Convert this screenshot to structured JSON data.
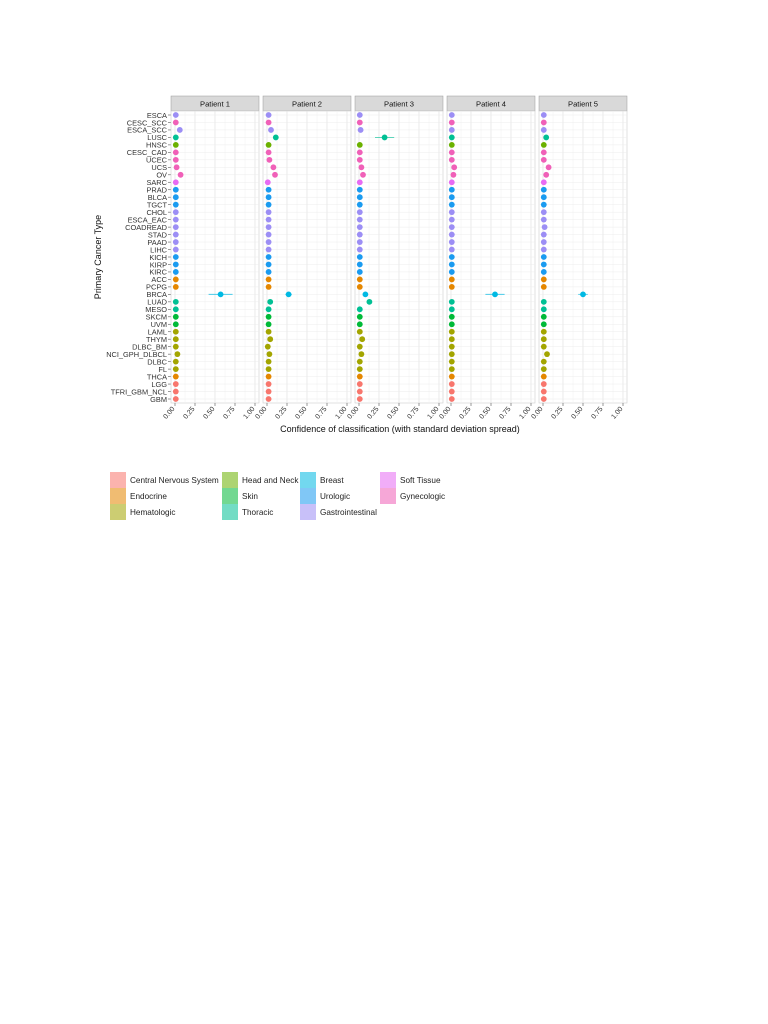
{
  "colors": {
    "Central Nervous System": "#f8766d",
    "Endocrine": "#e58700",
    "Hematologic": "#a3a500",
    "Head and Neck": "#6bb100",
    "Skin": "#00ba38",
    "Thoracic": "#00c094",
    "Breast": "#00b9e3",
    "Urologic": "#1a9bf0",
    "Gastrointestinal": "#9c8ef5",
    "Soft Tissue": "#e76bf3",
    "Gynecologic": "#f060b8"
  },
  "chart_data": {
    "type": "scatter",
    "ylabel": "Primary Cancer Type",
    "xlabel": "Confidence of classification (with standard deviation spread)",
    "xlim": [
      0,
      1
    ],
    "x_ticks": [
      "0.00",
      "0.25",
      "0.50",
      "0.75",
      "1.00"
    ],
    "grid": true,
    "legend_position": "bottom",
    "facets": [
      "Patient 1",
      "Patient 2",
      "Patient 3",
      "Patient 4",
      "Patient 5"
    ],
    "categories": [
      "ESCA",
      "CESC_SCC",
      "ESCA_SCC",
      "LUSC",
      "HNSC",
      "CESC_CAD",
      "UCEC",
      "UCS",
      "OV",
      "SARC",
      "PRAD",
      "BLCA",
      "TGCT",
      "CHOL",
      "ESCA_EAC",
      "COADREAD",
      "STAD",
      "PAAD",
      "LIHC",
      "KICH",
      "KIRP",
      "KIRC",
      "ACC",
      "PCPG",
      "BRCA",
      "LUAD",
      "MESO",
      "SKCM",
      "UVM",
      "LAML",
      "THYM",
      "DLBC_BM",
      "NCI_GPH_DLBCL",
      "DLBC",
      "FL",
      "THCA",
      "LGG",
      "TFRI_GBM_NCL",
      "GBM"
    ],
    "groups": [
      "Gastrointestinal",
      "Gynecologic",
      "Gastrointestinal",
      "Thoracic",
      "Head and Neck",
      "Gynecologic",
      "Gynecologic",
      "Gynecologic",
      "Gynecologic",
      "Soft Tissue",
      "Urologic",
      "Urologic",
      "Urologic",
      "Gastrointestinal",
      "Gastrointestinal",
      "Gastrointestinal",
      "Gastrointestinal",
      "Gastrointestinal",
      "Gastrointestinal",
      "Urologic",
      "Urologic",
      "Urologic",
      "Endocrine",
      "Endocrine",
      "Breast",
      "Thoracic",
      "Thoracic",
      "Skin",
      "Skin",
      "Hematologic",
      "Hematologic",
      "Hematologic",
      "Hematologic",
      "Hematologic",
      "Hematologic",
      "Endocrine",
      "Central Nervous System",
      "Central Nervous System",
      "Central Nervous System"
    ],
    "series": [
      {
        "name": "Patient 1",
        "values": [
          0.01,
          0.01,
          0.06,
          0.01,
          0.01,
          0.01,
          0.01,
          0.02,
          0.07,
          0.01,
          0.01,
          0.01,
          0.01,
          0.01,
          0.01,
          0.01,
          0.01,
          0.01,
          0.01,
          0.01,
          0.01,
          0.01,
          0.01,
          0.01,
          0.57,
          0.01,
          0.01,
          0.01,
          0.01,
          0.01,
          0.01,
          0.01,
          0.03,
          0.01,
          0.01,
          0.01,
          0.01,
          0.01,
          0.01
        ],
        "sd": [
          0,
          0,
          0,
          0,
          0,
          0,
          0,
          0,
          0,
          0,
          0,
          0,
          0,
          0,
          0,
          0,
          0,
          0,
          0,
          0,
          0,
          0,
          0,
          0,
          0.15,
          0,
          0,
          0,
          0,
          0,
          0,
          0,
          0,
          0,
          0,
          0,
          0,
          0,
          0
        ]
      },
      {
        "name": "Patient 2",
        "values": [
          0.02,
          0.02,
          0.05,
          0.11,
          0.02,
          0.02,
          0.03,
          0.08,
          0.1,
          0.01,
          0.02,
          0.02,
          0.02,
          0.02,
          0.02,
          0.02,
          0.02,
          0.02,
          0.02,
          0.02,
          0.02,
          0.02,
          0.02,
          0.02,
          0.27,
          0.04,
          0.02,
          0.02,
          0.02,
          0.02,
          0.04,
          0.01,
          0.03,
          0.02,
          0.02,
          0.02,
          0.02,
          0.02,
          0.02
        ],
        "sd": [
          0,
          0,
          0,
          0,
          0,
          0,
          0,
          0,
          0,
          0,
          0,
          0,
          0,
          0,
          0,
          0,
          0,
          0,
          0,
          0,
          0,
          0,
          0,
          0,
          0.04,
          0,
          0,
          0,
          0,
          0,
          0,
          0,
          0,
          0,
          0,
          0,
          0,
          0,
          0
        ]
      },
      {
        "name": "Patient 3",
        "values": [
          0.01,
          0.01,
          0.02,
          0.32,
          0.01,
          0.01,
          0.01,
          0.03,
          0.05,
          0.01,
          0.01,
          0.01,
          0.01,
          0.01,
          0.01,
          0.01,
          0.01,
          0.01,
          0.01,
          0.01,
          0.01,
          0.01,
          0.01,
          0.01,
          0.08,
          0.13,
          0.01,
          0.01,
          0.01,
          0.01,
          0.04,
          0.01,
          0.03,
          0.01,
          0.01,
          0.01,
          0.01,
          0.01,
          0.01
        ],
        "sd": [
          0,
          0,
          0,
          0.12,
          0,
          0,
          0,
          0,
          0,
          0,
          0,
          0,
          0,
          0,
          0,
          0,
          0,
          0,
          0,
          0,
          0,
          0,
          0,
          0,
          0,
          0,
          0,
          0,
          0,
          0,
          0,
          0,
          0,
          0,
          0,
          0,
          0,
          0,
          0
        ]
      },
      {
        "name": "Patient 4",
        "values": [
          0.01,
          0.01,
          0.01,
          0.01,
          0.01,
          0.01,
          0.01,
          0.04,
          0.03,
          0.01,
          0.01,
          0.01,
          0.01,
          0.01,
          0.01,
          0.01,
          0.01,
          0.01,
          0.01,
          0.01,
          0.01,
          0.01,
          0.01,
          0.01,
          0.55,
          0.01,
          0.01,
          0.01,
          0.01,
          0.01,
          0.01,
          0.01,
          0.01,
          0.01,
          0.01,
          0.01,
          0.01,
          0.01,
          0.01
        ],
        "sd": [
          0,
          0,
          0,
          0,
          0,
          0,
          0,
          0,
          0,
          0,
          0,
          0,
          0,
          0,
          0,
          0,
          0,
          0,
          0,
          0,
          0,
          0,
          0,
          0,
          0.12,
          0,
          0,
          0,
          0,
          0,
          0,
          0,
          0,
          0,
          0,
          0,
          0,
          0,
          0
        ]
      },
      {
        "name": "Patient 5",
        "values": [
          0.01,
          0.01,
          0.01,
          0.04,
          0.01,
          0.01,
          0.01,
          0.07,
          0.04,
          0.01,
          0.01,
          0.01,
          0.01,
          0.01,
          0.01,
          0.02,
          0.01,
          0.01,
          0.01,
          0.01,
          0.01,
          0.01,
          0.01,
          0.01,
          0.5,
          0.01,
          0.01,
          0.01,
          0.01,
          0.01,
          0.01,
          0.01,
          0.05,
          0.01,
          0.01,
          0.01,
          0.01,
          0.01,
          0.01
        ],
        "sd": [
          0,
          0,
          0,
          0,
          0,
          0,
          0,
          0,
          0,
          0,
          0,
          0,
          0,
          0,
          0,
          0,
          0,
          0,
          0,
          0,
          0,
          0,
          0,
          0,
          0.06,
          0,
          0,
          0,
          0,
          0,
          0,
          0,
          0,
          0,
          0,
          0,
          0,
          0,
          0
        ]
      }
    ],
    "legend": [
      "Central Nervous System",
      "Endocrine",
      "Hematologic",
      "Head and Neck",
      "Skin",
      "Thoracic",
      "Breast",
      "Urologic",
      "Gastrointestinal",
      "Soft Tissue",
      "Gynecologic"
    ]
  }
}
